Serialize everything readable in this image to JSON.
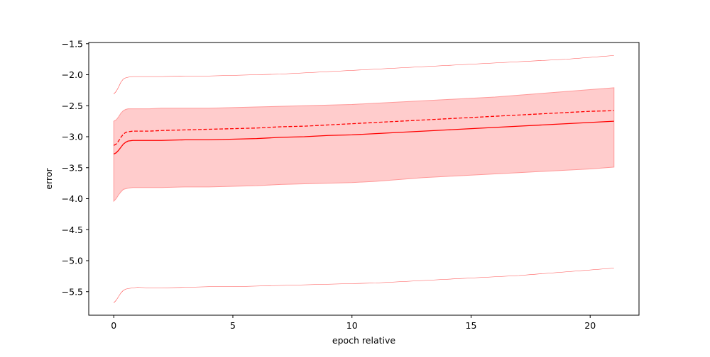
{
  "chart_data": {
    "type": "line",
    "title": "",
    "xlabel": "epoch relative",
    "ylabel": "error",
    "xlim": [
      -1.05,
      22.05
    ],
    "ylim": [
      -5.88,
      -1.48
    ],
    "xticks": [
      0,
      5,
      10,
      15,
      20
    ],
    "xtick_labels": [
      "0",
      "5",
      "10",
      "15",
      "20"
    ],
    "yticks": [
      -5.5,
      -5.0,
      -4.5,
      -4.0,
      -3.5,
      -3.0,
      -2.5,
      -2.0,
      -1.5
    ],
    "ytick_labels": [
      "−5.5",
      "−5.0",
      "−4.5",
      "−4.0",
      "−3.5",
      "−3.0",
      "−2.5",
      "−2.0",
      "−1.5"
    ],
    "grid": false,
    "legend": "none",
    "color": "#ff0000",
    "band_color": "#ffcccc",
    "band_edge_color": "#ff9999",
    "x": [
      0,
      0.1,
      0.2,
      0.3,
      0.4,
      0.5,
      0.6,
      0.8,
      1.0,
      1.5,
      2,
      3,
      4,
      5,
      6,
      7,
      8,
      9,
      10,
      11,
      12,
      13,
      14,
      15,
      16,
      17,
      18,
      19,
      20,
      21
    ],
    "series": [
      {
        "style": "solid",
        "values": [
          -3.28,
          -3.26,
          -3.22,
          -3.17,
          -3.12,
          -3.09,
          -3.07,
          -3.06,
          -3.06,
          -3.06,
          -3.06,
          -3.05,
          -3.05,
          -3.04,
          -3.03,
          -3.01,
          -3.0,
          -2.98,
          -2.97,
          -2.95,
          -2.93,
          -2.91,
          -2.89,
          -2.87,
          -2.85,
          -2.83,
          -2.81,
          -2.79,
          -2.77,
          -2.75
        ]
      },
      {
        "style": "dashed",
        "values": [
          -3.14,
          -3.12,
          -3.07,
          -3.01,
          -2.96,
          -2.93,
          -2.92,
          -2.91,
          -2.91,
          -2.91,
          -2.9,
          -2.89,
          -2.88,
          -2.87,
          -2.86,
          -2.84,
          -2.83,
          -2.81,
          -2.79,
          -2.77,
          -2.75,
          -2.73,
          -2.71,
          -2.69,
          -2.67,
          -2.65,
          -2.63,
          -2.61,
          -2.59,
          -2.58
        ]
      },
      {
        "style": "thin",
        "values": [
          -2.31,
          -2.27,
          -2.2,
          -2.12,
          -2.07,
          -2.05,
          -2.04,
          -2.03,
          -2.03,
          -2.03,
          -2.03,
          -2.02,
          -2.02,
          -2.01,
          -2.0,
          -1.99,
          -1.97,
          -1.95,
          -1.93,
          -1.91,
          -1.89,
          -1.87,
          -1.85,
          -1.83,
          -1.81,
          -1.79,
          -1.77,
          -1.75,
          -1.72,
          -1.69
        ]
      },
      {
        "style": "thin",
        "values": [
          -5.68,
          -5.64,
          -5.58,
          -5.52,
          -5.48,
          -5.46,
          -5.45,
          -5.44,
          -5.43,
          -5.44,
          -5.44,
          -5.43,
          -5.42,
          -5.42,
          -5.41,
          -5.4,
          -5.39,
          -5.38,
          -5.37,
          -5.36,
          -5.34,
          -5.32,
          -5.3,
          -5.28,
          -5.26,
          -5.24,
          -5.21,
          -5.18,
          -5.15,
          -5.12
        ]
      }
    ],
    "band": {
      "upper": [
        -2.75,
        -2.73,
        -2.68,
        -2.62,
        -2.58,
        -2.56,
        -2.55,
        -2.55,
        -2.55,
        -2.55,
        -2.54,
        -2.54,
        -2.54,
        -2.53,
        -2.52,
        -2.51,
        -2.5,
        -2.49,
        -2.48,
        -2.46,
        -2.44,
        -2.42,
        -2.4,
        -2.38,
        -2.36,
        -2.33,
        -2.3,
        -2.27,
        -2.24,
        -2.21
      ],
      "lower": [
        -4.04,
        -4.0,
        -3.94,
        -3.89,
        -3.85,
        -3.84,
        -3.83,
        -3.82,
        -3.82,
        -3.82,
        -3.82,
        -3.81,
        -3.81,
        -3.8,
        -3.79,
        -3.77,
        -3.76,
        -3.75,
        -3.74,
        -3.72,
        -3.69,
        -3.66,
        -3.64,
        -3.62,
        -3.6,
        -3.58,
        -3.56,
        -3.54,
        -3.52,
        -3.49
      ]
    }
  }
}
